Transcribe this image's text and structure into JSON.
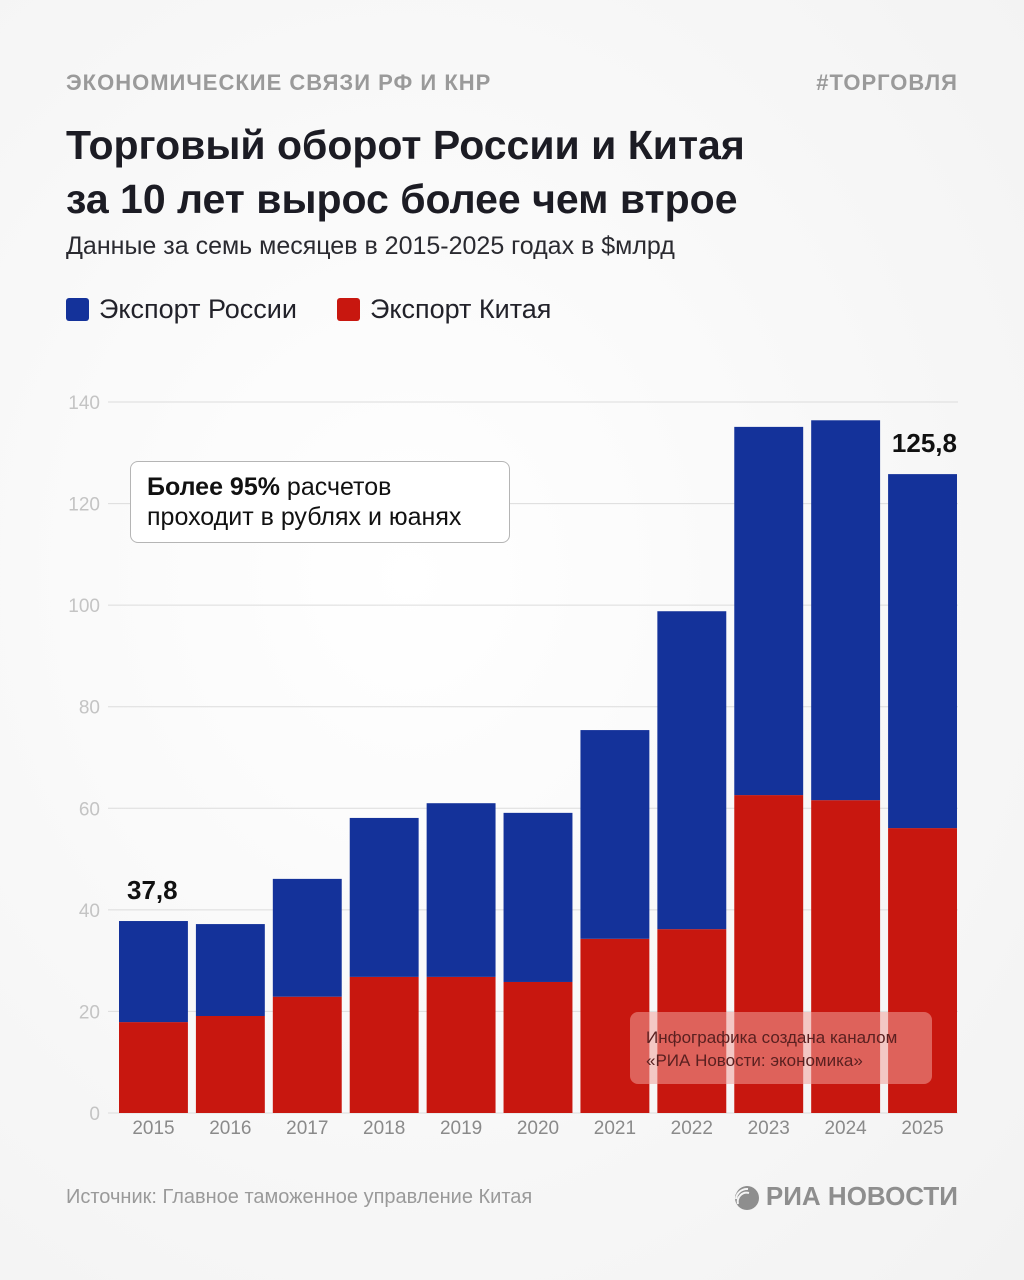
{
  "header": {
    "kicker": "ЭКОНОМИЧЕСКИЕ СВЯЗИ РФ И КНР",
    "hashtag": "#ТОРГОВЛЯ",
    "title_line1": "Торговый оборот России и Китая",
    "title_line2": "за 10 лет вырос более чем втрое",
    "subtitle": "Данные за семь месяцев в 2015-2025 годах в $млрд"
  },
  "callout": {
    "bold": "Более 95%",
    "rest_line1": " расчетов",
    "line2": "проходит в рублях и юанях"
  },
  "watermark": {
    "line1": "Инфографика создана каналом",
    "line2": "«РИА Новости: экономика»"
  },
  "footer": {
    "source": "Источник: Главное таможенное управление Китая",
    "logo_text": "РИА НОВОСТИ",
    "logo_icon": "ria-globe-icon"
  },
  "colors": {
    "russia": "#14329a",
    "china": "#c8170f",
    "grid": "#dcdcdc",
    "tick": "#c4c4c4",
    "xtick": "#8a8a8a"
  },
  "chart_data": {
    "type": "bar",
    "stacked": true,
    "title": "Торговый оборот России и Китая за 10 лет вырос более чем втрое",
    "subtitle": "Данные за семь месяцев в 2015-2025 годах в $млрд",
    "xlabel": "",
    "ylabel": "",
    "ylim": [
      0,
      140
    ],
    "yticks": [
      0,
      20,
      40,
      60,
      80,
      100,
      120,
      140
    ],
    "grid": true,
    "legend_position": "top-left",
    "categories": [
      "2015",
      "2016",
      "2017",
      "2018",
      "2019",
      "2020",
      "2021",
      "2022",
      "2023",
      "2024",
      "2025"
    ],
    "series": [
      {
        "name": "Экспорт Китая",
        "color": "#c8170f",
        "values": [
          17.9,
          19.1,
          22.9,
          26.8,
          26.8,
          25.8,
          34.3,
          36.2,
          62.6,
          61.6,
          56.1
        ]
      },
      {
        "name": "Экспорт России",
        "color": "#14329a",
        "values": [
          19.9,
          18.1,
          23.2,
          31.3,
          34.2,
          33.3,
          41.1,
          62.6,
          72.5,
          74.8,
          69.7
        ]
      }
    ],
    "legend": [
      "Экспорт России",
      "Экспорт Китая"
    ],
    "totals": [
      37.8,
      37.2,
      46.1,
      58.1,
      61.0,
      59.1,
      75.4,
      98.8,
      135.1,
      136.4,
      125.8
    ],
    "annotations": [
      {
        "category": "2015",
        "text": "37,8"
      },
      {
        "category": "2025",
        "text": "125,8"
      }
    ]
  }
}
